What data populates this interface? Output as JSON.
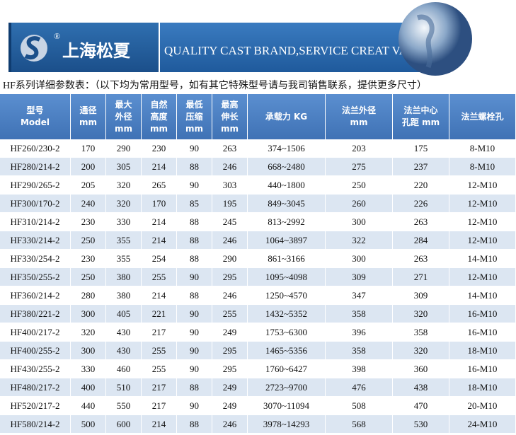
{
  "header": {
    "logo_mark": "®",
    "brand": "上海松夏",
    "slogan": "QUALITY CAST BRAND,SERVICE CREAT VALUE"
  },
  "caption": "HF系列详细参数表：（以下均为常用型号，如有其它特殊型号请与我司销售联系，提供更多尺寸）",
  "table": {
    "columns": [
      [
        "型号",
        "Model"
      ],
      [
        "通径",
        "mm"
      ],
      [
        "最大",
        "外径",
        "mm"
      ],
      [
        "自然",
        "高度",
        "mm"
      ],
      [
        "最低",
        "压缩",
        "mm"
      ],
      [
        "最高",
        "伸长",
        "mm"
      ],
      [
        "承载力 KG"
      ],
      [
        "法兰外径",
        "mm"
      ],
      [
        "法兰中心",
        "孔距 mm"
      ],
      [
        "法兰螺栓孔"
      ]
    ],
    "rows": [
      [
        "HF260/230-2",
        170,
        290,
        230,
        90,
        263,
        "374~1506",
        203,
        175,
        "8-M10"
      ],
      [
        "HF280/214-2",
        200,
        305,
        214,
        88,
        246,
        "668~2480",
        275,
        237,
        "8-M10"
      ],
      [
        "HF290/265-2",
        205,
        320,
        265,
        90,
        303,
        "440~1800",
        250,
        220,
        "12-M10"
      ],
      [
        "HF300/170-2",
        240,
        320,
        170,
        85,
        195,
        "849~3045",
        260,
        226,
        "12-M10"
      ],
      [
        "HF310/214-2",
        230,
        330,
        214,
        88,
        245,
        "813~2992",
        300,
        263,
        "12-M10"
      ],
      [
        "HF330/214-2",
        250,
        355,
        214,
        88,
        246,
        "1064~3897",
        322,
        284,
        "12-M10"
      ],
      [
        "HF330/254-2",
        230,
        355,
        254,
        88,
        290,
        "861~3166",
        300,
        263,
        "14-M10"
      ],
      [
        "HF350/255-2",
        250,
        380,
        255,
        90,
        295,
        "1095~4098",
        309,
        271,
        "12-M10"
      ],
      [
        "HF360/214-2",
        280,
        380,
        214,
        88,
        246,
        "1250~4570",
        347,
        309,
        "14-M10"
      ],
      [
        "HF380/221-2",
        300,
        405,
        221,
        90,
        255,
        "1432~5352",
        358,
        320,
        "16-M10"
      ],
      [
        "HF400/217-2",
        320,
        430,
        217,
        90,
        249,
        "1753~6300",
        396,
        358,
        "16-M10"
      ],
      [
        "HF400/255-2",
        300,
        430,
        255,
        90,
        295,
        "1465~5356",
        358,
        320,
        "18-M10"
      ],
      [
        "HF430/255-2",
        330,
        460,
        255,
        90,
        295,
        "1760~6427",
        398,
        360,
        "16-M10"
      ],
      [
        "HF480/217-2",
        400,
        510,
        217,
        88,
        249,
        "2723~9700",
        476,
        438,
        "18-M10"
      ],
      [
        "HF520/217-2",
        440,
        550,
        217,
        90,
        249,
        "3070~11094",
        508,
        470,
        "20-M10"
      ],
      [
        "HF580/214-2",
        500,
        600,
        214,
        88,
        246,
        "3978~14293",
        568,
        530,
        "24-M10"
      ]
    ]
  }
}
